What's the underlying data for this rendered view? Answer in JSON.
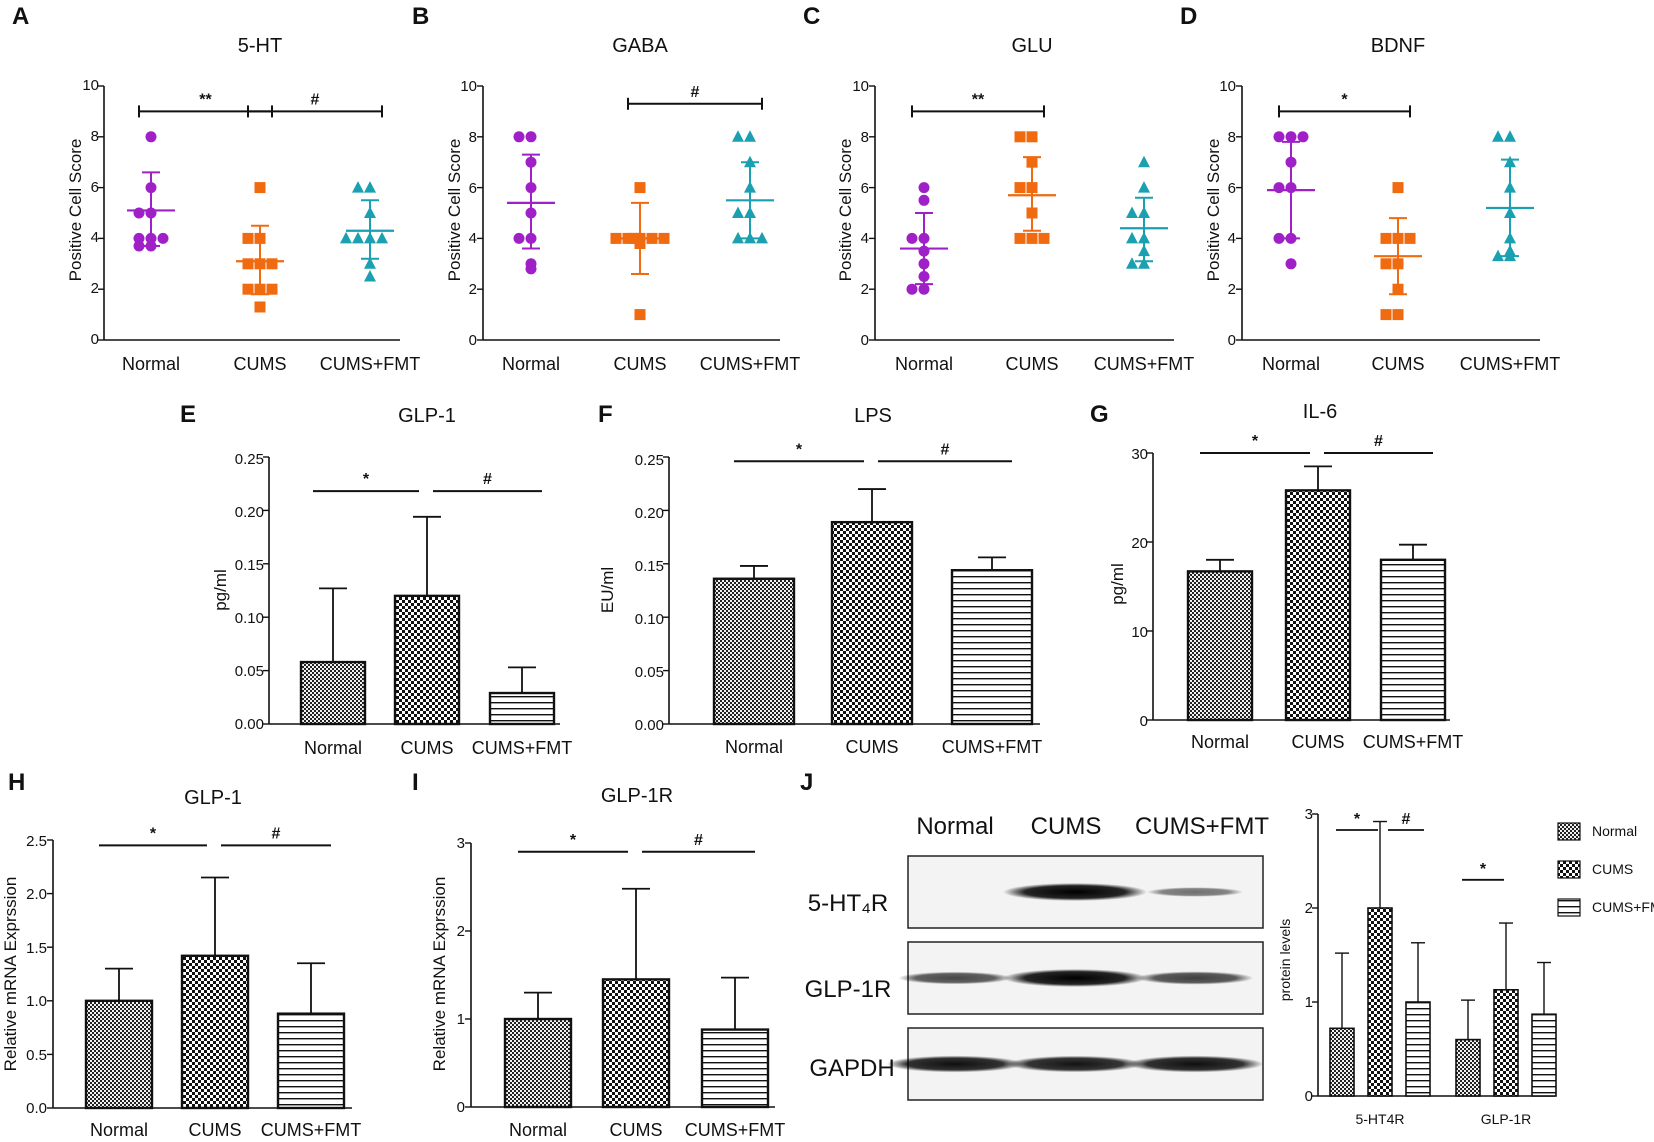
{
  "colors": {
    "normal": "#a020c8",
    "cums": "#f06a10",
    "fmt": "#1aa0b0"
  },
  "chart_data": [
    {
      "id": "A",
      "type": "scatter",
      "panel_label": "A",
      "title": "5-HT",
      "ylabel": "Positive Cell Score",
      "ylim": [
        0,
        10
      ],
      "yticks": [
        "0",
        "2",
        "4",
        "6",
        "8",
        "10"
      ],
      "categories": [
        "Normal",
        "CUMS",
        "CUMS+FMT"
      ],
      "series": [
        {
          "name": "Normal",
          "points": [
            8,
            6,
            5,
            5,
            4,
            4,
            4,
            3.7,
            3.7
          ],
          "mean": 5.1,
          "sd_low": 3.7,
          "sd_high": 6.6
        },
        {
          "name": "CUMS",
          "points": [
            6,
            4,
            4,
            3,
            3,
            3,
            2,
            2,
            2,
            1.3
          ],
          "mean": 3.1,
          "sd_low": 1.8,
          "sd_high": 4.5
        },
        {
          "name": "CUMS+FMT",
          "points": [
            6,
            6,
            5,
            4,
            4,
            4,
            4,
            3,
            2.5
          ],
          "mean": 4.3,
          "sd_low": 3.2,
          "sd_high": 5.5
        }
      ],
      "sig": [
        {
          "from": 0,
          "to": 1,
          "label": "**",
          "y": 9.0
        },
        {
          "from": 1,
          "to": 2,
          "label": "#",
          "y": 9.0
        }
      ]
    },
    {
      "id": "B",
      "type": "scatter",
      "panel_label": "B",
      "title": "GABA",
      "ylabel": "Positive Cell Score",
      "ylim": [
        0,
        10
      ],
      "yticks": [
        "0",
        "2",
        "4",
        "6",
        "8",
        "10"
      ],
      "categories": [
        "Normal",
        "CUMS",
        "CUMS+FMT"
      ],
      "series": [
        {
          "name": "Normal",
          "points": [
            8,
            8,
            7,
            6,
            5,
            4,
            4,
            3,
            2.8
          ],
          "mean": 5.4,
          "sd_low": 3.6,
          "sd_high": 7.3
        },
        {
          "name": "CUMS",
          "points": [
            6,
            4,
            4,
            4,
            4,
            4,
            4,
            3.8,
            1
          ],
          "mean": 4.0,
          "sd_low": 2.6,
          "sd_high": 5.4
        },
        {
          "name": "CUMS+FMT",
          "points": [
            8,
            8,
            7,
            6,
            5,
            5,
            4,
            4,
            4
          ],
          "mean": 5.5,
          "sd_low": 4.0,
          "sd_high": 7.0
        }
      ],
      "sig": [
        {
          "from": 1,
          "to": 2,
          "label": "#",
          "y": 9.3
        }
      ]
    },
    {
      "id": "C",
      "type": "scatter",
      "panel_label": "C",
      "title": "GLU",
      "ylabel": "Positive Cell Score",
      "ylim": [
        0,
        10
      ],
      "yticks": [
        "0",
        "2",
        "4",
        "6",
        "8",
        "10"
      ],
      "categories": [
        "Normal",
        "CUMS",
        "CUMS+FMT"
      ],
      "series": [
        {
          "name": "Normal",
          "points": [
            6,
            5.5,
            4,
            4,
            3.5,
            3,
            2.5,
            2,
            2
          ],
          "mean": 3.6,
          "sd_low": 2.2,
          "sd_high": 5.0
        },
        {
          "name": "CUMS",
          "points": [
            8,
            8,
            7,
            6,
            6,
            5,
            4,
            4,
            4
          ],
          "mean": 5.7,
          "sd_low": 4.3,
          "sd_high": 7.2
        },
        {
          "name": "CUMS+FMT",
          "points": [
            7,
            6,
            5,
            5,
            4,
            4,
            3.5,
            3,
            3
          ],
          "mean": 4.4,
          "sd_low": 3.1,
          "sd_high": 5.6
        }
      ],
      "sig": [
        {
          "from": 0,
          "to": 1,
          "label": "**",
          "y": 9.0
        }
      ]
    },
    {
      "id": "D",
      "type": "scatter",
      "panel_label": "D",
      "title": "BDNF",
      "ylabel": "Positive Cell Score",
      "ylim": [
        0,
        10
      ],
      "yticks": [
        "0",
        "2",
        "4",
        "6",
        "8",
        "10"
      ],
      "categories": [
        "Normal",
        "CUMS",
        "CUMS+FMT"
      ],
      "series": [
        {
          "name": "Normal",
          "points": [
            8,
            8,
            8,
            7,
            6,
            6,
            4,
            4,
            3
          ],
          "mean": 5.9,
          "sd_low": 4.0,
          "sd_high": 7.8
        },
        {
          "name": "CUMS",
          "points": [
            6,
            4,
            4,
            4,
            3,
            3,
            2,
            1,
            1
          ],
          "mean": 3.3,
          "sd_low": 1.8,
          "sd_high": 4.8
        },
        {
          "name": "CUMS+FMT",
          "points": [
            8,
            8,
            7,
            6,
            5,
            4,
            3.5,
            3.3,
            3.3
          ],
          "mean": 5.2,
          "sd_low": 3.3,
          "sd_high": 7.1
        }
      ],
      "sig": [
        {
          "from": 0,
          "to": 1,
          "label": "*",
          "y": 9.0
        }
      ]
    },
    {
      "id": "E",
      "type": "bar",
      "panel_label": "E",
      "title": "GLP-1",
      "ylabel": "pg/ml",
      "ylim": [
        0,
        0.25
      ],
      "yticks": [
        "0.00",
        "0.05",
        "0.10",
        "0.15",
        "0.20",
        "0.25"
      ],
      "categories": [
        "Normal",
        "CUMS",
        "CUMS+FMT"
      ],
      "values": [
        0.058,
        0.12,
        0.029
      ],
      "errors": [
        0.127,
        0.194,
        0.053
      ],
      "sig": [
        {
          "from": 0,
          "to": 1,
          "label": "*",
          "y": 0.218
        },
        {
          "from": 1,
          "to": 2,
          "label": "#",
          "y": 0.218
        }
      ]
    },
    {
      "id": "F",
      "type": "bar",
      "panel_label": "F",
      "title": "LPS",
      "ylabel": "EU/ml",
      "ylim": [
        0,
        0.25
      ],
      "yticks": [
        "0.00",
        "0.05",
        "0.10",
        "0.15",
        "0.20",
        "0.25"
      ],
      "categories": [
        "Normal",
        "CUMS",
        "CUMS+FMT"
      ],
      "values": [
        0.136,
        0.189,
        0.144
      ],
      "errors": [
        0.148,
        0.22,
        0.156
      ],
      "sig": [
        {
          "from": 0,
          "to": 1,
          "label": "*",
          "y": 0.246
        },
        {
          "from": 1,
          "to": 2,
          "label": "#",
          "y": 0.246
        }
      ]
    },
    {
      "id": "G",
      "type": "bar",
      "panel_label": "G",
      "title": "IL-6",
      "ylabel": "pg/ml",
      "ylim": [
        0,
        30
      ],
      "yticks": [
        "0",
        "10",
        "20",
        "30"
      ],
      "categories": [
        "Normal",
        "CUMS",
        "CUMS+FMT"
      ],
      "values": [
        16.7,
        25.8,
        18.0
      ],
      "errors": [
        18.0,
        28.5,
        19.7
      ],
      "sig": [
        {
          "from": 0,
          "to": 1,
          "label": "*",
          "y": 30.0
        },
        {
          "from": 1,
          "to": 2,
          "label": "#",
          "y": 30.0
        }
      ]
    },
    {
      "id": "H",
      "type": "bar",
      "panel_label": "H",
      "title": "GLP-1",
      "ylabel": "Relative mRNA Exprssion",
      "ylim": [
        0,
        2.5
      ],
      "yticks": [
        "0.0",
        "0.5",
        "1.0",
        "1.5",
        "2.0",
        "2.5"
      ],
      "categories": [
        "Normal",
        "CUMS",
        "CUMS+FMT"
      ],
      "values": [
        1.0,
        1.42,
        0.88
      ],
      "errors": [
        1.3,
        2.15,
        1.35
      ],
      "sig": [
        {
          "from": 0,
          "to": 1,
          "label": "*",
          "y": 2.45
        },
        {
          "from": 1,
          "to": 2,
          "label": "#",
          "y": 2.45
        }
      ]
    },
    {
      "id": "I",
      "type": "bar",
      "panel_label": "I",
      "title": "GLP-1R",
      "ylabel": "Relative mRNA Exprssion",
      "ylim": [
        0,
        3
      ],
      "yticks": [
        "0",
        "1",
        "2",
        "3"
      ],
      "categories": [
        "Normal",
        "CUMS",
        "CUMS+FMT"
      ],
      "values": [
        1.0,
        1.45,
        0.88
      ],
      "errors": [
        1.3,
        2.48,
        1.47
      ],
      "sig": [
        {
          "from": 0,
          "to": 1,
          "label": "*",
          "y": 2.9
        },
        {
          "from": 1,
          "to": 2,
          "label": "#",
          "y": 2.9
        }
      ]
    },
    {
      "id": "J",
      "type": "bar",
      "panel_label": "J",
      "title": "",
      "ylabel": "protein levels",
      "ylim": [
        0,
        3
      ],
      "yticks": [
        "0",
        "1",
        "2",
        "3"
      ],
      "categories": [
        "5-HT4R",
        "GLP-1R"
      ],
      "series": [
        {
          "name": "Normal",
          "values": [
            0.72,
            0.6
          ],
          "errors": [
            1.52,
            1.02
          ]
        },
        {
          "name": "CUMS",
          "values": [
            2.0,
            1.13
          ],
          "errors": [
            2.92,
            1.84
          ]
        },
        {
          "name": "CUMS+FMT",
          "values": [
            1.0,
            0.87
          ],
          "errors": [
            1.63,
            1.42
          ]
        }
      ],
      "sig": [
        {
          "group": 0,
          "from": 0,
          "to": 1,
          "label": "*",
          "y": 2.83
        },
        {
          "group": 0,
          "from": 1,
          "to": 2,
          "label": "#",
          "y": 2.83
        },
        {
          "group": 1,
          "from": 0,
          "to": 1,
          "label": "*",
          "y": 2.3
        }
      ],
      "legend": [
        "Normal",
        "CUMS",
        "CUMS+FMT"
      ]
    }
  ],
  "blot": {
    "columns": [
      "Normal",
      "CUMS",
      "CUMS+FMT"
    ],
    "rows": [
      {
        "label": "5-HT₄R",
        "intensity": [
          0.0,
          1.0,
          0.3
        ]
      },
      {
        "label": "GLP-1R",
        "intensity": [
          0.55,
          1.0,
          0.6
        ]
      },
      {
        "label": "GAPDH",
        "intensity": [
          0.9,
          0.88,
          0.9
        ]
      }
    ]
  }
}
